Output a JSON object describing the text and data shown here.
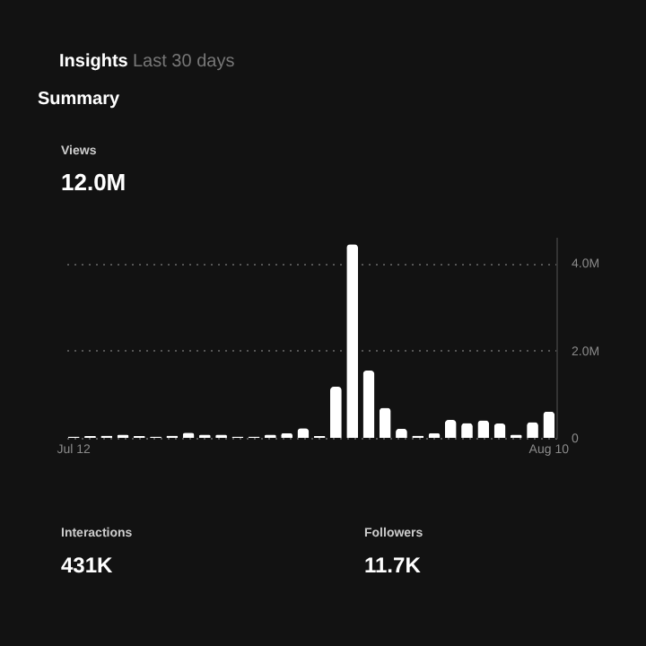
{
  "chart_data": {
    "type": "bar",
    "title": "Insights",
    "subtitle": "Last 30 days",
    "annotations": [
      "Summary",
      "Views",
      "12.0M",
      "Interactions",
      "431K",
      "Followers",
      "11.7K"
    ],
    "categories": [
      "Jul 12",
      null,
      null,
      null,
      null,
      null,
      null,
      null,
      null,
      null,
      null,
      null,
      null,
      null,
      null,
      null,
      null,
      null,
      null,
      null,
      null,
      null,
      null,
      null,
      null,
      null,
      null,
      null,
      null,
      "Aug 10"
    ],
    "values": [
      0.03,
      0.04,
      0.05,
      0.07,
      0.04,
      0.03,
      0.05,
      0.12,
      0.07,
      0.07,
      0.03,
      0.03,
      0.07,
      0.11,
      0.22,
      0.04,
      1.17,
      4.43,
      1.54,
      0.69,
      0.21,
      0.05,
      0.11,
      0.41,
      0.34,
      0.4,
      0.33,
      0.07,
      0.36,
      0.6
    ],
    "color": "#ffffff",
    "ylim": [
      0,
      4.6
    ],
    "yticks": [
      0,
      {
        "value": 2,
        "label": "2.0M"
      },
      {
        "value": 4,
        "label": "4.0M"
      }
    ],
    "grid": "y"
  }
}
